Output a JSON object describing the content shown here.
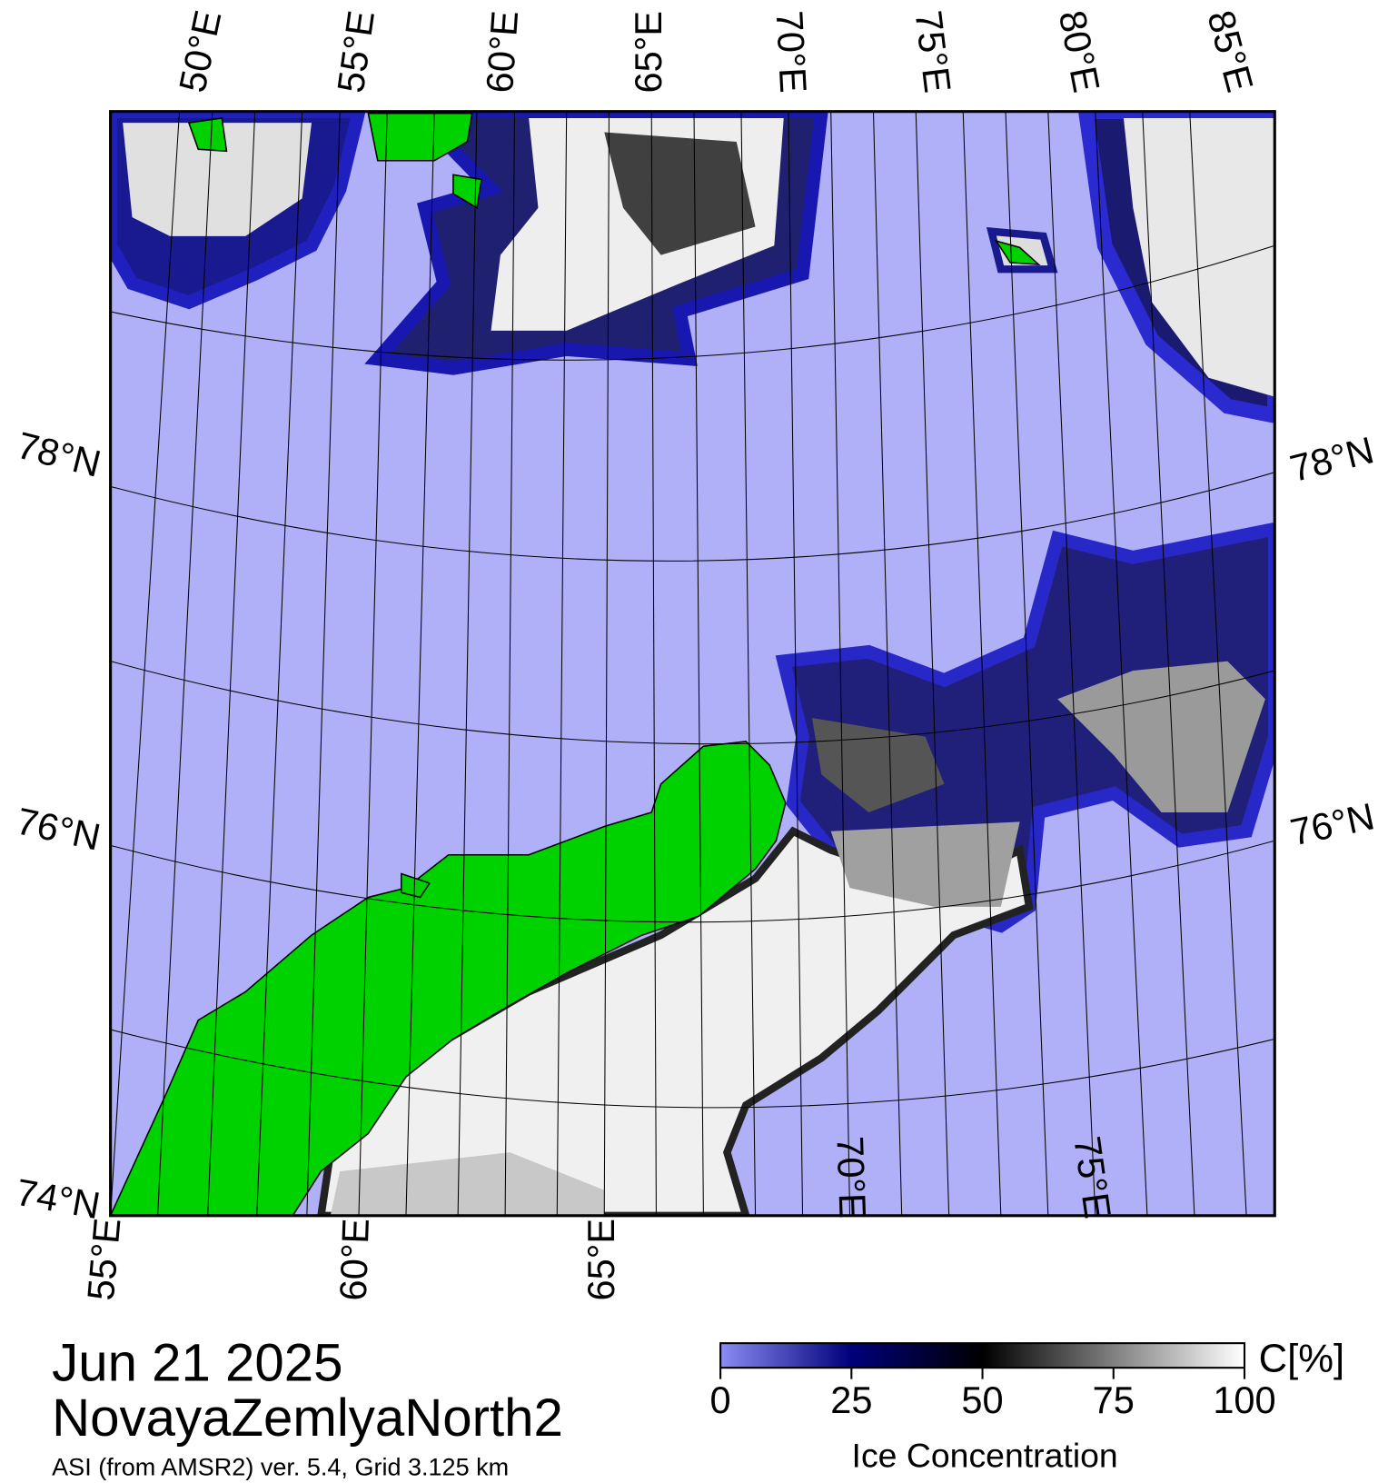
{
  "map": {
    "top_labels": [
      "50°E",
      "55°E",
      "60°E",
      "65°E",
      "70°E",
      "75°E",
      "80°E",
      "85°E"
    ],
    "bottom_labels": [
      "55°E",
      "60°E",
      "65°E",
      "70°E",
      "75°E"
    ],
    "left_labels": [
      "78°N",
      "76°N",
      "74°N"
    ],
    "right_labels": [
      "78°N",
      "76°N"
    ]
  },
  "colorbar": {
    "range": [
      0,
      100
    ],
    "ticks": [
      0,
      25,
      50,
      75,
      100
    ],
    "unit": "C[%]",
    "label": "Ice Concentration"
  },
  "footer": {
    "date": "Jun 21 2025",
    "region": "NovayaZemlyaNorth2",
    "note": "ASI (from AMSR2) ver. 5.4,  Grid 3.125 km"
  }
}
